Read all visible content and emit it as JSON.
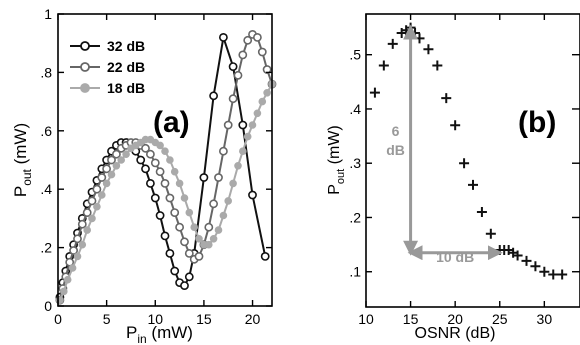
{
  "chart_data": [
    {
      "type": "line",
      "panel_label": "(a)",
      "xlabel_main": "P",
      "xlabel_sub": "in",
      "xlabel_unit": " (mW)",
      "ylabel_main": "P",
      "ylabel_sub": "out",
      "ylabel_unit": " (mW)",
      "xlim": [
        0,
        22
      ],
      "ylim": [
        0,
        1.0
      ],
      "xticks": [
        0,
        5,
        10,
        15,
        20
      ],
      "xtick_labels": [
        "0",
        "5",
        "10",
        "15",
        "20"
      ],
      "yticks": [
        0,
        0.2,
        0.4,
        0.6,
        0.8,
        1.0
      ],
      "ytick_labels": [
        "0",
        ".2",
        ".4",
        ".6",
        ".8",
        "1"
      ],
      "legend_position": "top-left",
      "series": [
        {
          "name": "32 dB",
          "color": "#111111",
          "marker": "open-circle",
          "x": [
            0.2,
            0.5,
            0.8,
            1.2,
            1.6,
            2.0,
            2.5,
            3.0,
            3.5,
            4.0,
            4.5,
            5.0,
            5.5,
            6.0,
            6.5,
            7.0,
            7.5,
            8.0,
            8.5,
            9.0,
            9.5,
            10.0,
            10.5,
            11.0,
            11.5,
            12.0,
            12.5,
            13.0,
            13.5,
            14.0,
            15.0,
            16.0,
            17.0,
            18.0,
            19.0,
            20.0,
            21.3
          ],
          "y": [
            0.03,
            0.08,
            0.12,
            0.17,
            0.21,
            0.25,
            0.3,
            0.35,
            0.39,
            0.43,
            0.47,
            0.5,
            0.53,
            0.55,
            0.56,
            0.56,
            0.55,
            0.53,
            0.5,
            0.47,
            0.42,
            0.37,
            0.31,
            0.24,
            0.18,
            0.12,
            0.08,
            0.07,
            0.1,
            0.18,
            0.44,
            0.72,
            0.92,
            0.82,
            0.62,
            0.38,
            0.17
          ]
        },
        {
          "name": "22 dB",
          "color": "#666666",
          "marker": "open-circle",
          "x": [
            0.2,
            0.5,
            0.8,
            1.2,
            1.6,
            2.0,
            2.5,
            3.0,
            3.5,
            4.0,
            4.5,
            5.0,
            5.5,
            6.0,
            6.5,
            7.0,
            7.5,
            8.0,
            8.5,
            9.0,
            9.5,
            10.0,
            10.5,
            11.0,
            11.5,
            12.0,
            12.5,
            13.0,
            13.5,
            14.0,
            14.5,
            15.0,
            15.5,
            16.0,
            16.5,
            17.0,
            17.5,
            18.0,
            18.5,
            19.0,
            19.5,
            20.0,
            20.5,
            21.0,
            21.5,
            22.0
          ],
          "y": [
            0.02,
            0.06,
            0.1,
            0.15,
            0.19,
            0.23,
            0.28,
            0.32,
            0.36,
            0.4,
            0.44,
            0.47,
            0.5,
            0.52,
            0.54,
            0.55,
            0.56,
            0.56,
            0.55,
            0.54,
            0.52,
            0.49,
            0.46,
            0.42,
            0.37,
            0.32,
            0.27,
            0.22,
            0.18,
            0.16,
            0.17,
            0.21,
            0.27,
            0.35,
            0.44,
            0.53,
            0.62,
            0.71,
            0.79,
            0.86,
            0.91,
            0.93,
            0.92,
            0.87,
            0.81,
            0.76
          ]
        },
        {
          "name": "18 dB",
          "color": "#aaaaaa",
          "marker": "filled-circle",
          "x": [
            0.2,
            0.6,
            1.0,
            1.5,
            2.0,
            2.5,
            3.0,
            3.5,
            4.0,
            4.5,
            5.0,
            5.5,
            6.0,
            6.5,
            7.0,
            7.5,
            8.0,
            8.5,
            9.0,
            9.5,
            10.0,
            10.5,
            11.0,
            11.5,
            12.0,
            12.5,
            13.0,
            13.5,
            14.0,
            14.5,
            15.0,
            15.5,
            16.0,
            16.5,
            17.0,
            17.5,
            18.0,
            18.5,
            19.0,
            19.5,
            20.0,
            20.5,
            21.0,
            21.5,
            22.0
          ],
          "y": [
            0.02,
            0.05,
            0.09,
            0.13,
            0.17,
            0.21,
            0.26,
            0.3,
            0.34,
            0.38,
            0.42,
            0.45,
            0.48,
            0.5,
            0.52,
            0.54,
            0.55,
            0.56,
            0.57,
            0.57,
            0.56,
            0.55,
            0.53,
            0.5,
            0.46,
            0.42,
            0.37,
            0.32,
            0.27,
            0.23,
            0.21,
            0.21,
            0.23,
            0.26,
            0.31,
            0.36,
            0.42,
            0.48,
            0.53,
            0.58,
            0.62,
            0.66,
            0.7,
            0.73,
            0.76
          ]
        }
      ]
    },
    {
      "type": "scatter",
      "panel_label": "(b)",
      "xlabel": "OSNR (dB)",
      "ylabel_main": "P",
      "ylabel_sub": "out",
      "ylabel_unit": " (mW)",
      "xlim": [
        10,
        34
      ],
      "ylim": [
        0.035,
        0.575
      ],
      "xticks": [
        10,
        15,
        20,
        25,
        30
      ],
      "xtick_labels": [
        "10",
        "15",
        "20",
        "25",
        "30"
      ],
      "yticks": [
        0.1,
        0.2,
        0.3,
        0.4,
        0.5
      ],
      "ytick_labels": [
        ".1",
        ".2",
        ".3",
        ".4",
        ".5"
      ],
      "series": [
        {
          "color": "#111111",
          "marker": "plus",
          "x": [
            11,
            12,
            13,
            14,
            14.5,
            15,
            15.5,
            16,
            17,
            18,
            19,
            20,
            21,
            22,
            23,
            24,
            25,
            25.5,
            26,
            26.5,
            27,
            28,
            29,
            30,
            31,
            32
          ],
          "y": [
            0.43,
            0.48,
            0.52,
            0.54,
            0.545,
            0.55,
            0.54,
            0.53,
            0.51,
            0.48,
            0.42,
            0.37,
            0.3,
            0.26,
            0.21,
            0.17,
            0.14,
            0.14,
            0.14,
            0.135,
            0.13,
            0.12,
            0.11,
            0.1,
            0.095,
            0.095
          ]
        }
      ],
      "annotations": {
        "color": "#999999",
        "vertical_label_line1": "6",
        "vertical_label_line2": "dB",
        "horizontal_label": "10 dB",
        "vertical_arrow": {
          "x": 15,
          "y_from": 0.135,
          "y_to": 0.55
        },
        "horizontal_arrow": {
          "y": 0.135,
          "x_from": 15,
          "x_to": 25
        }
      }
    }
  ]
}
